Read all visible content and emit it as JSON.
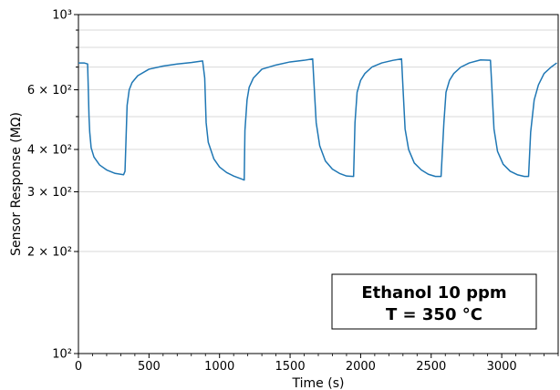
{
  "chart_data": {
    "type": "line",
    "title": "",
    "xlabel": "Time (s)",
    "ylabel": "Sensor Response (MΩ)",
    "xlim": [
      0,
      3400
    ],
    "ylim": [
      100,
      1000
    ],
    "yscale": "log",
    "grid": "horizontal",
    "x_ticks": [
      0,
      500,
      1000,
      1500,
      2000,
      2500,
      3000
    ],
    "y_ticks": [
      {
        "value": 1000,
        "label": "10³"
      },
      {
        "value": 600,
        "label": "6 × 10²"
      },
      {
        "value": 400,
        "label": "4 × 10²"
      },
      {
        "value": 300,
        "label": "3 × 10²"
      },
      {
        "value": 200,
        "label": "2 × 10²"
      },
      {
        "value": 100,
        "label": "10²"
      }
    ],
    "annotation": [
      "Ethanol 10 ppm",
      "T = 350 °C"
    ],
    "series": [
      {
        "color": "#1f77b4",
        "x": [
          0,
          40,
          65,
          70,
          75,
          80,
          90,
          110,
          150,
          200,
          260,
          300,
          320,
          330,
          345,
          360,
          380,
          420,
          500,
          600,
          700,
          800,
          880,
          895,
          905,
          920,
          960,
          1000,
          1050,
          1100,
          1150,
          1175,
          1180,
          1195,
          1210,
          1240,
          1300,
          1400,
          1500,
          1600,
          1660,
          1670,
          1685,
          1710,
          1750,
          1800,
          1850,
          1900,
          1950,
          1960,
          1975,
          2000,
          2030,
          2080,
          2150,
          2230,
          2290,
          2300,
          2315,
          2340,
          2380,
          2430,
          2480,
          2530,
          2570,
          2590,
          2605,
          2630,
          2660,
          2710,
          2770,
          2850,
          2920,
          2930,
          2945,
          2970,
          3010,
          3060,
          3110,
          3160,
          3190,
          3205,
          3230,
          3260,
          3300,
          3350,
          3390
        ],
        "y": [
          720,
          720,
          715,
          600,
          500,
          450,
          405,
          380,
          360,
          348,
          340,
          338,
          337,
          345,
          540,
          600,
          630,
          660,
          690,
          705,
          715,
          722,
          730,
          650,
          480,
          420,
          375,
          355,
          342,
          334,
          328,
          325,
          455,
          560,
          610,
          650,
          690,
          710,
          725,
          733,
          740,
          620,
          480,
          410,
          370,
          350,
          340,
          334,
          333,
          480,
          590,
          640,
          670,
          700,
          720,
          733,
          740,
          610,
          460,
          400,
          365,
          348,
          338,
          333,
          333,
          480,
          590,
          640,
          670,
          700,
          720,
          735,
          733,
          610,
          460,
          395,
          362,
          345,
          337,
          333,
          333,
          450,
          560,
          620,
          670,
          700,
          720
        ]
      }
    ]
  }
}
